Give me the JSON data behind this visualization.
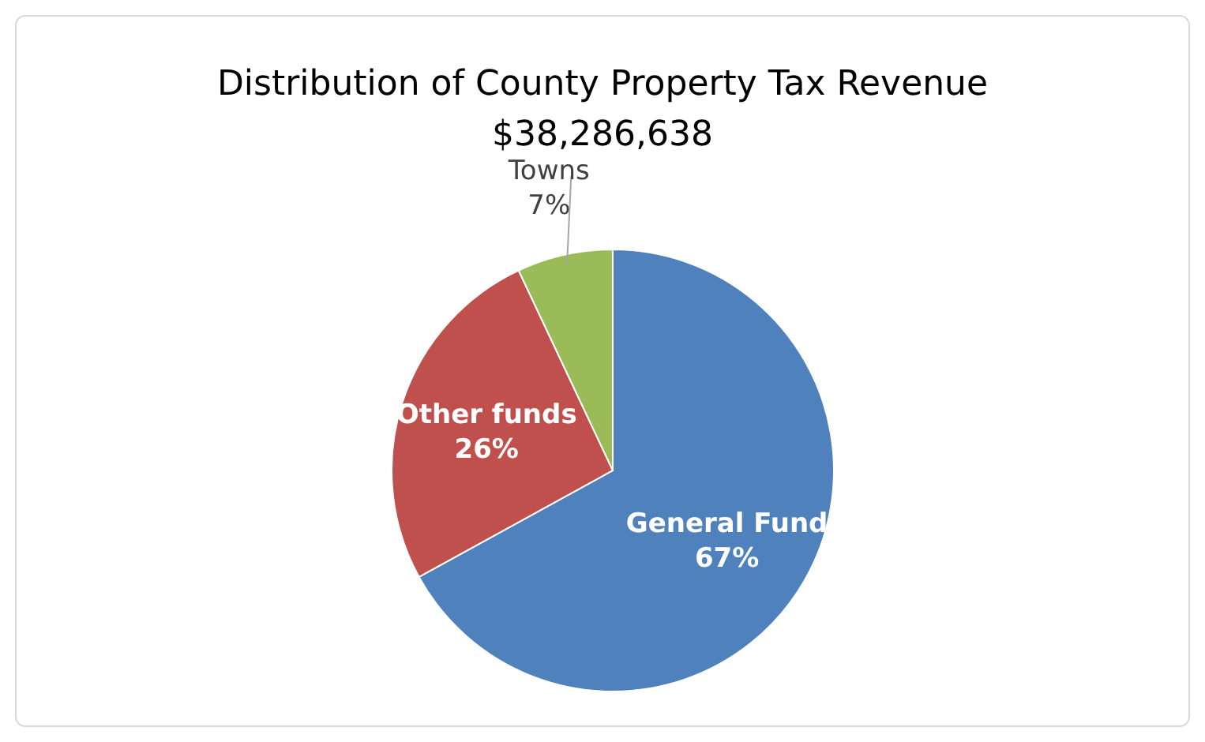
{
  "chart_data": {
    "type": "pie",
    "title": "Distribution of County Property Tax Revenue",
    "subtitle": "$38,286,638",
    "categories": [
      "General Fund",
      "Other funds",
      "Towns"
    ],
    "values": [
      67,
      26,
      7
    ],
    "colors": [
      "#4f81bd",
      "#c0504d",
      "#9bbb59"
    ],
    "value_labels": [
      "67%",
      "26%",
      "7%"
    ]
  }
}
